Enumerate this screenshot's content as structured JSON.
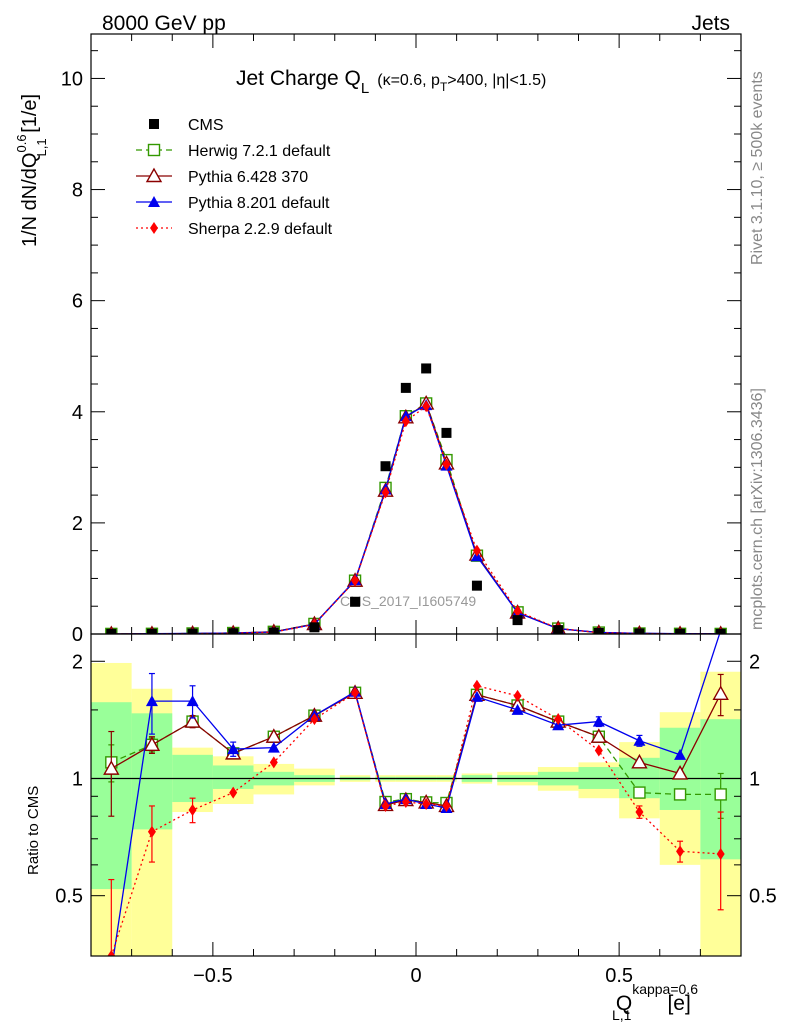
{
  "header": {
    "left": "8000 GeV pp",
    "right": "Jets"
  },
  "side": {
    "rivet": "Rivet 3.1.10, ≥ 500k events",
    "mcplots": "mcplots.cern.ch [arXiv:1306.3436]"
  },
  "chart_data": {
    "type": "line",
    "title_main": "Jet Charge Q",
    "title_sub": "L",
    "title_cond_1": "(κ=0.6, p",
    "title_cond_sub": "T",
    "title_cond_2": ">400, |η|<1.5)",
    "watermark": "CMS_2017_I1605749",
    "ylabel_main": "1/N dN/dQ",
    "ylabel_sup": "0.6",
    "ylabel_sub": "L,1",
    "ylabel_unit": " [1/e]",
    "ratio_ylabel": "Ratio to CMS",
    "xlabel_main": "Q",
    "xlabel_sup": "kappa=0.6",
    "xlabel_sub": "L,1",
    "xlabel_unit": "[e]",
    "xlim": [
      -0.8,
      0.8
    ],
    "ylim": [
      0,
      10.8
    ],
    "ratio_ylim": [
      0.35,
      2.35
    ],
    "x_ticks": [
      "−0.5",
      "0",
      "0.5"
    ],
    "x_tick_values": [
      -0.5,
      0,
      0.5
    ],
    "y_ticks": [
      "0",
      "2",
      "4",
      "6",
      "8",
      "10"
    ],
    "ratio_ticks": [
      "0.5",
      "1",
      "2"
    ],
    "ratio_tick_values": [
      0.5,
      1,
      2
    ],
    "x": [
      -0.75,
      -0.65,
      -0.55,
      -0.45,
      -0.35,
      -0.25,
      -0.15,
      -0.075,
      -0.025,
      0.025,
      0.075,
      0.15,
      0.25,
      0.35,
      0.45,
      0.55,
      0.65,
      0.75
    ],
    "legend": [
      "CMS",
      "Herwig 7.2.1 default",
      "Pythia 6.428 370",
      "Pythia 8.201 default",
      "Sherpa 2.2.9 default"
    ],
    "series": [
      {
        "name": "CMS",
        "color": "#000000",
        "values": [
          0.0015,
          0.003,
          0.007,
          0.015,
          0.03,
          0.12,
          0.58,
          3.02,
          4.43,
          4.78,
          3.62,
          0.87,
          0.25,
          0.07,
          0.02,
          0.01,
          0.004,
          0.0018
        ]
      },
      {
        "name": "Herwig 7.2.1 default",
        "color": "#339900",
        "values": [
          0.0017,
          0.0037,
          0.0098,
          0.0174,
          0.039,
          0.181,
          0.96,
          2.63,
          3.92,
          4.15,
          3.13,
          1.41,
          0.39,
          0.098,
          0.026,
          0.0092,
          0.0036,
          0.0016
        ],
        "ratio": [
          1.1,
          1.22,
          1.4,
          1.16,
          1.28,
          1.45,
          1.66,
          0.87,
          0.885,
          0.868,
          0.865,
          1.64,
          1.54,
          1.4,
          1.28,
          0.92,
          0.91,
          0.91
        ]
      },
      {
        "name": "Pythia 6.428 370",
        "color": "#8b0000",
        "values": [
          0.0016,
          0.0037,
          0.0098,
          0.0174,
          0.039,
          0.18,
          0.96,
          2.58,
          3.9,
          4.15,
          3.07,
          1.43,
          0.385,
          0.098,
          0.026,
          0.011,
          0.0041,
          0.003
        ],
        "ratio": [
          1.06,
          1.22,
          1.4,
          1.16,
          1.28,
          1.45,
          1.66,
          0.855,
          0.88,
          0.868,
          0.85,
          1.64,
          1.54,
          1.4,
          1.28,
          1.1,
          1.03,
          1.65
        ]
      },
      {
        "name": "Pythia 8.201 default",
        "color": "#0000ee",
        "values": [
          0.0005,
          0.0047,
          0.0111,
          0.0179,
          0.036,
          0.174,
          0.97,
          2.6,
          3.92,
          4.12,
          3.03,
          1.4,
          0.383,
          0.096,
          0.028,
          0.0125,
          0.0046,
          0.0043
        ],
        "ratio": [
          0.32,
          1.58,
          1.58,
          1.19,
          1.2,
          1.45,
          1.67,
          0.86,
          0.885,
          0.86,
          0.84,
          1.62,
          1.5,
          1.37,
          1.4,
          1.25,
          1.15,
          2.4
        ]
      },
      {
        "name": "Sherpa 2.2.9 default",
        "color": "#ff0000",
        "values": [
          0.0005,
          0.0022,
          0.0059,
          0.0139,
          0.033,
          0.172,
          0.96,
          2.55,
          3.83,
          4.1,
          3.05,
          1.5,
          0.41,
          0.1,
          0.024,
          0.0083,
          0.0026,
          0.0012
        ],
        "ratio": [
          0.35,
          0.73,
          0.83,
          0.92,
          1.1,
          1.42,
          1.66,
          0.85,
          0.87,
          0.86,
          0.85,
          1.73,
          1.63,
          1.42,
          1.18,
          0.82,
          0.65,
          0.64
        ]
      }
    ],
    "ratio_err": {
      "Herwig 7.2.1 default": [
        0.12,
        0.05,
        0.04,
        0,
        0,
        0,
        0,
        0,
        0,
        0,
        0,
        0,
        0,
        0,
        0,
        0,
        0,
        0.12
      ],
      "Pythia 6.428 370": [
        0.26,
        0.06,
        0.05,
        0,
        0,
        0,
        0,
        0,
        0,
        0,
        0,
        0,
        0,
        0,
        0,
        0,
        0,
        0.2
      ],
      "Pythia 8.201 default": [
        0,
        0.28,
        0.15,
        0.05,
        0,
        0,
        0,
        0,
        0,
        0,
        0,
        0,
        0,
        0,
        0.04,
        0.04,
        0,
        0
      ],
      "Sherpa 2.2.9 default": [
        0.2,
        0.12,
        0.06,
        0,
        0,
        0,
        0,
        0,
        0,
        0,
        0,
        0,
        0,
        0,
        0,
        0.03,
        0.04,
        0.18
      ]
    },
    "bands": {
      "green": [
        [
          0.52,
          1.57
        ],
        [
          0.74,
          1.47
        ],
        [
          0.87,
          1.15
        ],
        [
          0.94,
          1.08
        ],
        [
          0.96,
          1.04
        ],
        [
          0.98,
          1.02
        ],
        [
          0.99,
          1.01
        ],
        [
          0.99,
          1.01
        ],
        [
          0.99,
          1.01
        ],
        [
          0.99,
          1.01
        ],
        [
          0.99,
          1.01
        ],
        [
          0.98,
          1.02
        ],
        [
          0.98,
          1.02
        ],
        [
          0.96,
          1.04
        ],
        [
          0.94,
          1.07
        ],
        [
          0.89,
          1.13
        ],
        [
          0.83,
          1.35
        ],
        [
          0.62,
          1.42
        ]
      ],
      "yellow": [
        [
          0.35,
          1.98
        ],
        [
          0.35,
          1.7
        ],
        [
          0.82,
          1.2
        ],
        [
          0.86,
          1.14
        ],
        [
          0.91,
          1.09
        ],
        [
          0.96,
          1.06
        ],
        [
          0.98,
          1.02
        ],
        [
          0.98,
          1.02
        ],
        [
          0.98,
          1.02
        ],
        [
          0.98,
          1.02
        ],
        [
          0.98,
          1.02
        ],
        [
          0.97,
          1.03
        ],
        [
          0.96,
          1.04
        ],
        [
          0.93,
          1.07
        ],
        [
          0.89,
          1.1
        ],
        [
          0.79,
          1.24
        ],
        [
          0.6,
          1.48
        ],
        [
          0.35,
          1.88
        ]
      ]
    }
  }
}
